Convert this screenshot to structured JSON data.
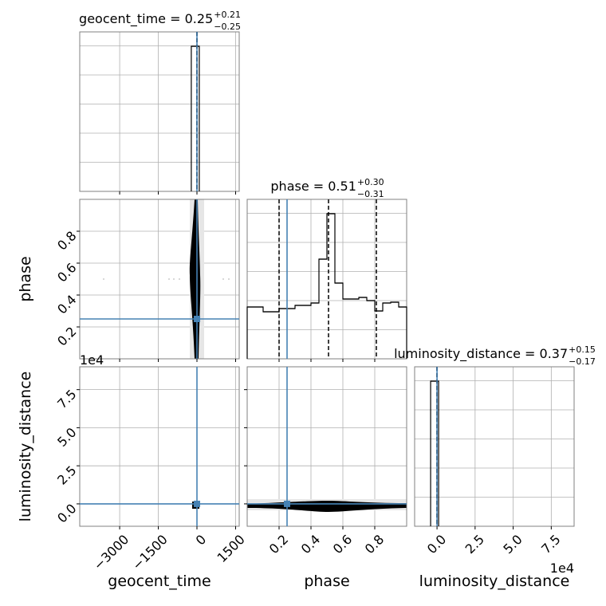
{
  "chart_data": {
    "type": "corner",
    "parameters": [
      "geocent_time",
      "phase",
      "luminosity_distance"
    ],
    "titles": [
      {
        "main": "geocent_time = 0.25",
        "upper": "+0.21",
        "lower": "−0.25"
      },
      {
        "main": "phase = 0.51",
        "upper": "+0.30",
        "lower": "−0.31"
      },
      {
        "main": "luminosity_distance = 0.37",
        "upper": "+0.15",
        "lower": "−0.17"
      }
    ],
    "ranges": [
      [
        -4550,
        1640
      ],
      [
        0,
        1
      ],
      [
        -14700,
        90000
      ]
    ],
    "ticks": [
      [
        {
          "value": -3000,
          "label": "−3000"
        },
        {
          "value": -1500,
          "label": "−1500"
        },
        0,
        1500
      ],
      [
        0.2,
        0.4,
        0.6,
        0.8
      ],
      [
        {
          "value": 0,
          "label": "0.0"
        },
        {
          "value": 25000,
          "label": "2.5"
        },
        {
          "value": 50000,
          "label": "5.0"
        },
        {
          "value": 75000,
          "label": "7.5"
        }
      ]
    ],
    "offset_labels": [
      null,
      null,
      "1e4"
    ],
    "truths": [
      0,
      0.25,
      0
    ],
    "truth_color": "#4682b4",
    "quantiles": [
      [
        0,
        0.25,
        0.46
      ],
      [
        0.2,
        0.51,
        0.81
      ],
      [
        0.2,
        0.37,
        0.52
      ]
    ],
    "hist_ylim": [
      0,
      1
    ],
    "histograms": [
      {
        "bins": [
          -220,
          90
        ],
        "counts": [
          0.91
        ]
      },
      {
        "bins": [
          0,
          0.05,
          0.1,
          0.15,
          0.2,
          0.25,
          0.3,
          0.35,
          0.4,
          0.45,
          0.5,
          0.55,
          0.6,
          0.65,
          0.7,
          0.75,
          0.8,
          0.85,
          0.9,
          0.95,
          1.0
        ],
        "counts": [
          0.325,
          0.325,
          0.295,
          0.295,
          0.315,
          0.315,
          0.335,
          0.335,
          0.35,
          0.625,
          0.91,
          0.475,
          0.375,
          0.375,
          0.385,
          0.365,
          0.3,
          0.35,
          0.355,
          0.325
        ]
      },
      {
        "bins": [
          -4200,
          1050
        ],
        "counts": [
          0.91
        ]
      }
    ],
    "grid": true
  }
}
